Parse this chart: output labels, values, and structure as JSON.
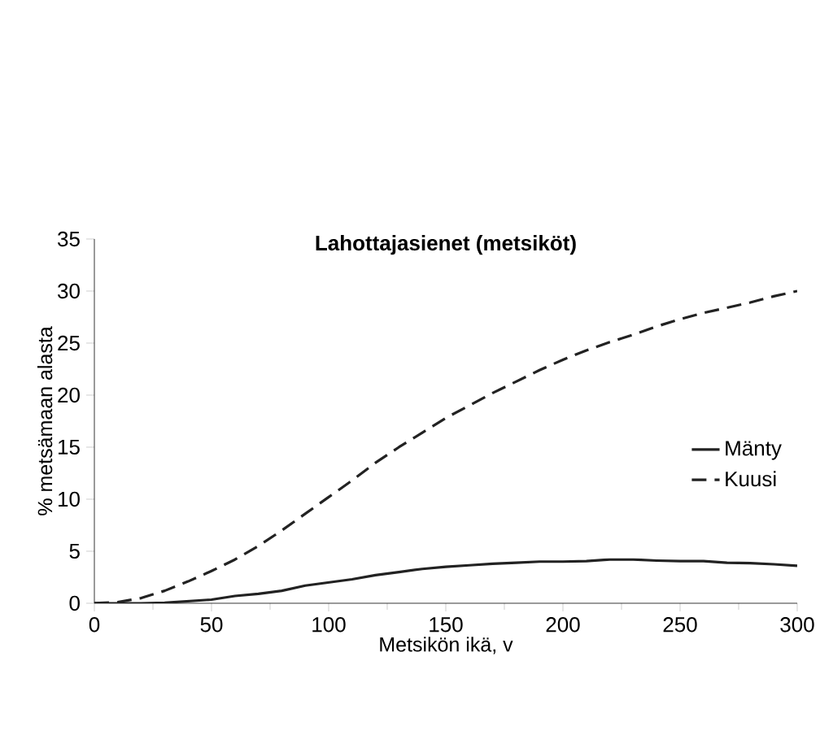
{
  "chart_data": {
    "type": "line",
    "title": "Lahottajasienet (metsiköt)",
    "xlabel": "Metsikön ikä, v",
    "ylabel": "% metsämaan alasta",
    "xlim": [
      0,
      300
    ],
    "ylim": [
      0,
      35
    ],
    "xticks": [
      0,
      50,
      100,
      150,
      200,
      250,
      300
    ],
    "yticks": [
      0,
      5,
      10,
      15,
      20,
      25,
      30,
      35
    ],
    "x": [
      0,
      10,
      20,
      30,
      40,
      50,
      60,
      70,
      80,
      90,
      100,
      110,
      120,
      130,
      140,
      150,
      160,
      170,
      180,
      190,
      200,
      210,
      220,
      230,
      240,
      250,
      260,
      270,
      280,
      290,
      300
    ],
    "legend": "right",
    "grid": false,
    "marker": "none",
    "series": [
      {
        "name": "Mänty",
        "color": "#222222",
        "line_style": "solid",
        "values": [
          0,
          0,
          0,
          0.05,
          0.2,
          0.35,
          0.7,
          0.9,
          1.2,
          1.7,
          2.0,
          2.3,
          2.7,
          3.0,
          3.3,
          3.5,
          3.65,
          3.8,
          3.9,
          4.0,
          4.0,
          4.05,
          4.2,
          4.2,
          4.1,
          4.05,
          4.05,
          3.9,
          3.85,
          3.75,
          3.6
        ]
      },
      {
        "name": "Kuusi",
        "color": "#222222",
        "line_style": "dashed",
        "values": [
          0,
          0.1,
          0.5,
          1.2,
          2.1,
          3.1,
          4.2,
          5.5,
          7,
          8.6,
          10.2,
          11.8,
          13.5,
          15,
          16.4,
          17.8,
          19,
          20.2,
          21.3,
          22.4,
          23.4,
          24.3,
          25.1,
          25.8,
          26.6,
          27.3,
          27.9,
          28.4,
          28.9,
          29.5,
          30
        ]
      }
    ]
  }
}
